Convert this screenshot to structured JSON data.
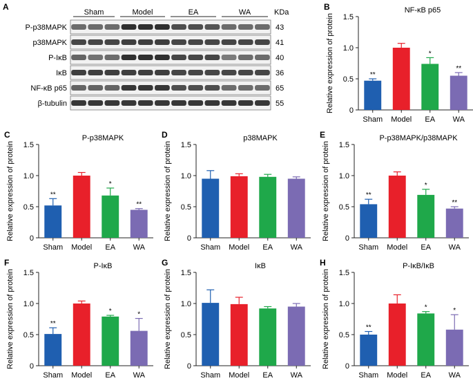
{
  "blot": {
    "panel_letter": "A",
    "groups": [
      "Sham",
      "Model",
      "EA",
      "WA"
    ],
    "unit": "KDa",
    "rows": [
      {
        "label": "P-p38MAPK",
        "kda": "43"
      },
      {
        "label": "p38MAPK",
        "kda": "41"
      },
      {
        "label": "P-IκB",
        "kda": "40"
      },
      {
        "label": "IκB",
        "kda": "36"
      },
      {
        "label": "NF-κB p65",
        "kda": "65"
      },
      {
        "label": "β-tubulin",
        "kda": "55"
      }
    ]
  },
  "colors": [
    "#1f5fb0",
    "#e8202a",
    "#1fa84a",
    "#7b6bb3"
  ],
  "chart_data": [
    {
      "panel": "B",
      "type": "bar",
      "title": "NF-κB p65",
      "categories": [
        "Sham",
        "Model",
        "EA",
        "WA"
      ],
      "values": [
        0.47,
        1.0,
        0.74,
        0.55
      ],
      "errors": [
        0.03,
        0.07,
        0.1,
        0.05
      ],
      "significance": [
        "**",
        "",
        "*",
        "**"
      ],
      "ylabel": "Relative expression of protein",
      "ylim": [
        0,
        1.5
      ],
      "yticks": [
        "0",
        "0.5",
        "1.0",
        "1.5"
      ]
    },
    {
      "panel": "C",
      "type": "bar",
      "title": "P-p38MAPK",
      "categories": [
        "Sham",
        "Model",
        "EA",
        "WA"
      ],
      "values": [
        0.52,
        1.0,
        0.68,
        0.45
      ],
      "errors": [
        0.11,
        0.05,
        0.12,
        0.02
      ],
      "significance": [
        "**",
        "",
        "*",
        "**"
      ],
      "ylabel": "Relative expression of protein",
      "ylim": [
        0,
        1.5
      ],
      "yticks": [
        "0",
        "0.5",
        "1.0",
        "1.5"
      ]
    },
    {
      "panel": "D",
      "type": "bar",
      "title": "p38MAPK",
      "categories": [
        "Sham",
        "Model",
        "EA",
        "WA"
      ],
      "values": [
        0.95,
        0.99,
        0.98,
        0.95
      ],
      "errors": [
        0.13,
        0.04,
        0.04,
        0.03
      ],
      "significance": [
        "",
        "",
        "",
        ""
      ],
      "ylabel": "Relative expression of protein",
      "ylim": [
        0,
        1.5
      ],
      "yticks": [
        "0",
        "0.5",
        "1.0",
        "1.5"
      ]
    },
    {
      "panel": "E",
      "type": "bar",
      "title": "P-p38MAPK/p38MAPK",
      "categories": [
        "Sham",
        "Model",
        "EA",
        "WA"
      ],
      "values": [
        0.54,
        1.0,
        0.69,
        0.47
      ],
      "errors": [
        0.08,
        0.06,
        0.09,
        0.03
      ],
      "significance": [
        "**",
        "",
        "*",
        "**"
      ],
      "ylabel": "Relative expression of protein",
      "ylim": [
        0,
        1.5
      ],
      "yticks": [
        "0",
        "0.5",
        "1.0",
        "1.5"
      ]
    },
    {
      "panel": "F",
      "type": "bar",
      "title": "P-IκB",
      "categories": [
        "Sham",
        "Model",
        "EA",
        "WA"
      ],
      "values": [
        0.51,
        1.0,
        0.79,
        0.56
      ],
      "errors": [
        0.1,
        0.04,
        0.02,
        0.2
      ],
      "significance": [
        "**",
        "",
        "*",
        "*"
      ],
      "ylabel": "Relative expression of protein",
      "ylim": [
        0,
        1.5
      ],
      "yticks": [
        "0",
        "0.5",
        "1.0",
        "1.5"
      ]
    },
    {
      "panel": "G",
      "type": "bar",
      "title": "IκB",
      "categories": [
        "Sham",
        "Model",
        "EA",
        "WA"
      ],
      "values": [
        1.01,
        0.99,
        0.92,
        0.95
      ],
      "errors": [
        0.21,
        0.11,
        0.03,
        0.05
      ],
      "significance": [
        "",
        "",
        "",
        ""
      ],
      "ylabel": "Relative expression of protein",
      "ylim": [
        0,
        1.5
      ],
      "yticks": [
        "0",
        "0.5",
        "1.0",
        "1.5"
      ]
    },
    {
      "panel": "H",
      "type": "bar",
      "title": "P-IκB/IκB",
      "categories": [
        "Sham",
        "Model",
        "EA",
        "WA"
      ],
      "values": [
        0.5,
        1.0,
        0.84,
        0.58
      ],
      "errors": [
        0.05,
        0.14,
        0.03,
        0.24
      ],
      "significance": [
        "**",
        "",
        "*",
        "*"
      ],
      "ylabel": "Relative expression of protein",
      "ylim": [
        0,
        1.5
      ],
      "yticks": [
        "0",
        "0.5",
        "1.0",
        "1.5"
      ]
    }
  ]
}
